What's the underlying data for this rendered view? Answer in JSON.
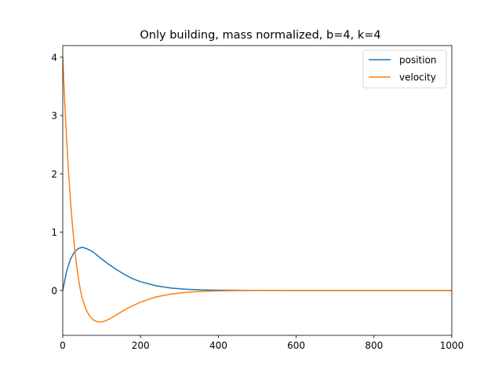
{
  "chart_data": {
    "type": "line",
    "title": "Only building, mass normalized, b=4, k=4",
    "xlabel": "",
    "ylabel": "",
    "xlim": [
      0,
      1000
    ],
    "ylim": [
      -0.77,
      4.2
    ],
    "x_ticks": [
      0,
      200,
      400,
      600,
      800,
      1000
    ],
    "y_ticks": [
      0,
      1,
      2,
      3,
      4
    ],
    "grid": false,
    "legend_position": "top-right",
    "series": [
      {
        "name": "position",
        "color": "#1f77b4",
        "x": [
          0,
          10,
          20,
          30,
          40,
          50,
          60,
          70,
          80,
          100,
          120,
          140,
          160,
          180,
          200,
          240,
          280,
          320,
          360,
          400,
          450,
          500,
          600,
          700,
          800,
          900,
          1000
        ],
        "y": [
          0,
          0.33,
          0.54,
          0.66,
          0.72,
          0.74,
          0.72,
          0.69,
          0.65,
          0.54,
          0.44,
          0.35,
          0.27,
          0.2,
          0.15,
          0.08,
          0.04,
          0.02,
          0.01,
          0.005,
          0.002,
          0.001,
          0,
          0,
          0,
          0,
          0
        ]
      },
      {
        "name": "velocity",
        "color": "#ff7f0e",
        "x": [
          0,
          5,
          10,
          15,
          20,
          25,
          30,
          35,
          40,
          45,
          50,
          60,
          70,
          80,
          90,
          100,
          110,
          120,
          140,
          160,
          180,
          200,
          240,
          280,
          320,
          360,
          400,
          450,
          500,
          600,
          700,
          800,
          900,
          1000
        ],
        "y": [
          4.0,
          3.24,
          2.59,
          2.02,
          1.53,
          1.11,
          0.76,
          0.46,
          0.22,
          0.02,
          -0.13,
          -0.33,
          -0.45,
          -0.51,
          -0.54,
          -0.54,
          -0.52,
          -0.49,
          -0.41,
          -0.33,
          -0.26,
          -0.2,
          -0.11,
          -0.06,
          -0.03,
          -0.015,
          -0.007,
          -0.003,
          -0.001,
          0,
          0,
          0,
          0,
          0
        ]
      }
    ]
  }
}
